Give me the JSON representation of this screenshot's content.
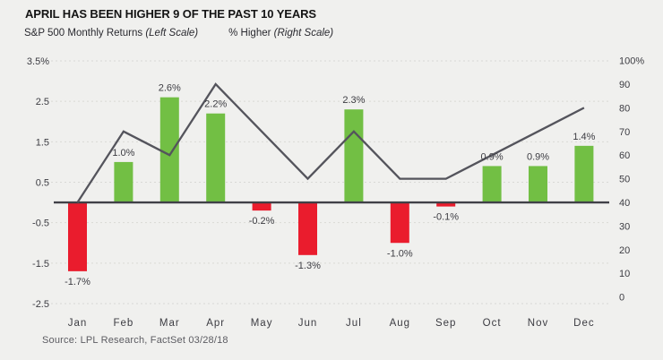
{
  "header": {
    "title": "APRIL HAS BEEN HIGHER 9 OF THE PAST 10 YEARS",
    "legend_left_label": "S&P 500 Monthly Returns",
    "legend_left_note": "(Left Scale)",
    "legend_right_label": "% Higher",
    "legend_right_note": "(Right Scale)"
  },
  "footer": {
    "source": "Source: LPL Research, FactSet 03/28/18"
  },
  "colors": {
    "background": "#f0f0ee",
    "positive_bar": "#72bf44",
    "negative_bar": "#ea1c2d",
    "line": "#54545c",
    "axis": "#404047",
    "grid": "#d9d9d5",
    "tick_text": "#3c3c42",
    "label_text": "#3c3c42"
  },
  "chart_data": {
    "type": "bar",
    "title": "APRIL HAS BEEN HIGHER 9 OF THE PAST 10 YEARS",
    "categories": [
      "Jan",
      "Feb",
      "Mar",
      "Apr",
      "May",
      "Jun",
      "Jul",
      "Aug",
      "Sep",
      "Oct",
      "Nov",
      "Dec"
    ],
    "series": [
      {
        "name": "S&P 500 Monthly Returns",
        "type": "bar",
        "axis": "left",
        "values": [
          -1.7,
          1.0,
          2.6,
          2.2,
          -0.2,
          -1.3,
          2.3,
          -1.0,
          -0.1,
          0.9,
          0.9,
          1.4
        ],
        "labels": [
          "-1.7%",
          "1.0%",
          "2.6%",
          "2.2%",
          "-0.2%",
          "-1.3%",
          "2.3%",
          "-1.0%",
          "-0.1%",
          "0.9%",
          "0.9%",
          "1.4%"
        ]
      },
      {
        "name": "% Higher",
        "type": "line",
        "axis": "right",
        "values": [
          40,
          70,
          60,
          90,
          70,
          50,
          70,
          50,
          50,
          60,
          70,
          80
        ]
      }
    ],
    "left_axis": {
      "ticks": [
        3.5,
        2.5,
        1.5,
        0.5,
        -0.5,
        -1.5,
        -2.5
      ],
      "tick_labels": [
        "3.5%",
        "2.5",
        "1.5",
        "0.5",
        "-0.5",
        "-1.5",
        "-2.5"
      ],
      "range": [
        -2.5,
        3.5
      ],
      "grid": true
    },
    "right_axis": {
      "ticks": [
        100,
        90,
        80,
        70,
        60,
        50,
        40,
        30,
        20,
        10,
        0
      ],
      "tick_labels": [
        "100%",
        "90",
        "80",
        "70",
        "60",
        "50",
        "40",
        "30",
        "20",
        "10",
        "0"
      ],
      "range": [
        0,
        100
      ],
      "grid": false
    },
    "legend_position": "top"
  }
}
